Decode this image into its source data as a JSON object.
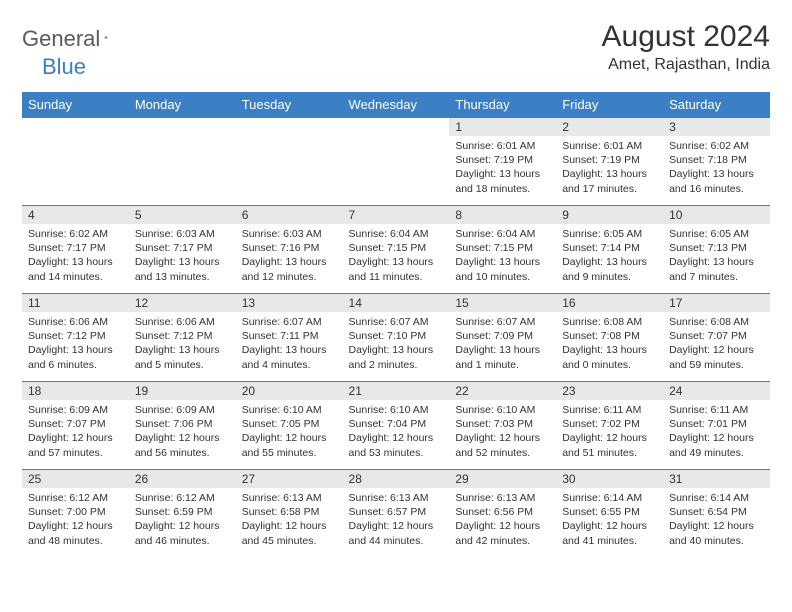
{
  "logo": {
    "text1": "General",
    "text2": "Blue"
  },
  "title": "August 2024",
  "location": "Amet, Rajasthan, India",
  "colors": {
    "header_bg": "#3b7fc4",
    "header_text": "#ffffff",
    "daynum_bg": "#e8e8e8",
    "row_border": "#3b7fc4",
    "body_text": "#333333",
    "logo_gray": "#5a5a5a"
  },
  "day_headers": [
    "Sunday",
    "Monday",
    "Tuesday",
    "Wednesday",
    "Thursday",
    "Friday",
    "Saturday"
  ],
  "weeks": [
    [
      {
        "num": "",
        "lines": []
      },
      {
        "num": "",
        "lines": []
      },
      {
        "num": "",
        "lines": []
      },
      {
        "num": "",
        "lines": []
      },
      {
        "num": "1",
        "lines": [
          "Sunrise: 6:01 AM",
          "Sunset: 7:19 PM",
          "Daylight: 13 hours",
          "and 18 minutes."
        ]
      },
      {
        "num": "2",
        "lines": [
          "Sunrise: 6:01 AM",
          "Sunset: 7:19 PM",
          "Daylight: 13 hours",
          "and 17 minutes."
        ]
      },
      {
        "num": "3",
        "lines": [
          "Sunrise: 6:02 AM",
          "Sunset: 7:18 PM",
          "Daylight: 13 hours",
          "and 16 minutes."
        ]
      }
    ],
    [
      {
        "num": "4",
        "lines": [
          "Sunrise: 6:02 AM",
          "Sunset: 7:17 PM",
          "Daylight: 13 hours",
          "and 14 minutes."
        ]
      },
      {
        "num": "5",
        "lines": [
          "Sunrise: 6:03 AM",
          "Sunset: 7:17 PM",
          "Daylight: 13 hours",
          "and 13 minutes."
        ]
      },
      {
        "num": "6",
        "lines": [
          "Sunrise: 6:03 AM",
          "Sunset: 7:16 PM",
          "Daylight: 13 hours",
          "and 12 minutes."
        ]
      },
      {
        "num": "7",
        "lines": [
          "Sunrise: 6:04 AM",
          "Sunset: 7:15 PM",
          "Daylight: 13 hours",
          "and 11 minutes."
        ]
      },
      {
        "num": "8",
        "lines": [
          "Sunrise: 6:04 AM",
          "Sunset: 7:15 PM",
          "Daylight: 13 hours",
          "and 10 minutes."
        ]
      },
      {
        "num": "9",
        "lines": [
          "Sunrise: 6:05 AM",
          "Sunset: 7:14 PM",
          "Daylight: 13 hours",
          "and 9 minutes."
        ]
      },
      {
        "num": "10",
        "lines": [
          "Sunrise: 6:05 AM",
          "Sunset: 7:13 PM",
          "Daylight: 13 hours",
          "and 7 minutes."
        ]
      }
    ],
    [
      {
        "num": "11",
        "lines": [
          "Sunrise: 6:06 AM",
          "Sunset: 7:12 PM",
          "Daylight: 13 hours",
          "and 6 minutes."
        ]
      },
      {
        "num": "12",
        "lines": [
          "Sunrise: 6:06 AM",
          "Sunset: 7:12 PM",
          "Daylight: 13 hours",
          "and 5 minutes."
        ]
      },
      {
        "num": "13",
        "lines": [
          "Sunrise: 6:07 AM",
          "Sunset: 7:11 PM",
          "Daylight: 13 hours",
          "and 4 minutes."
        ]
      },
      {
        "num": "14",
        "lines": [
          "Sunrise: 6:07 AM",
          "Sunset: 7:10 PM",
          "Daylight: 13 hours",
          "and 2 minutes."
        ]
      },
      {
        "num": "15",
        "lines": [
          "Sunrise: 6:07 AM",
          "Sunset: 7:09 PM",
          "Daylight: 13 hours",
          "and 1 minute."
        ]
      },
      {
        "num": "16",
        "lines": [
          "Sunrise: 6:08 AM",
          "Sunset: 7:08 PM",
          "Daylight: 13 hours",
          "and 0 minutes."
        ]
      },
      {
        "num": "17",
        "lines": [
          "Sunrise: 6:08 AM",
          "Sunset: 7:07 PM",
          "Daylight: 12 hours",
          "and 59 minutes."
        ]
      }
    ],
    [
      {
        "num": "18",
        "lines": [
          "Sunrise: 6:09 AM",
          "Sunset: 7:07 PM",
          "Daylight: 12 hours",
          "and 57 minutes."
        ]
      },
      {
        "num": "19",
        "lines": [
          "Sunrise: 6:09 AM",
          "Sunset: 7:06 PM",
          "Daylight: 12 hours",
          "and 56 minutes."
        ]
      },
      {
        "num": "20",
        "lines": [
          "Sunrise: 6:10 AM",
          "Sunset: 7:05 PM",
          "Daylight: 12 hours",
          "and 55 minutes."
        ]
      },
      {
        "num": "21",
        "lines": [
          "Sunrise: 6:10 AM",
          "Sunset: 7:04 PM",
          "Daylight: 12 hours",
          "and 53 minutes."
        ]
      },
      {
        "num": "22",
        "lines": [
          "Sunrise: 6:10 AM",
          "Sunset: 7:03 PM",
          "Daylight: 12 hours",
          "and 52 minutes."
        ]
      },
      {
        "num": "23",
        "lines": [
          "Sunrise: 6:11 AM",
          "Sunset: 7:02 PM",
          "Daylight: 12 hours",
          "and 51 minutes."
        ]
      },
      {
        "num": "24",
        "lines": [
          "Sunrise: 6:11 AM",
          "Sunset: 7:01 PM",
          "Daylight: 12 hours",
          "and 49 minutes."
        ]
      }
    ],
    [
      {
        "num": "25",
        "lines": [
          "Sunrise: 6:12 AM",
          "Sunset: 7:00 PM",
          "Daylight: 12 hours",
          "and 48 minutes."
        ]
      },
      {
        "num": "26",
        "lines": [
          "Sunrise: 6:12 AM",
          "Sunset: 6:59 PM",
          "Daylight: 12 hours",
          "and 46 minutes."
        ]
      },
      {
        "num": "27",
        "lines": [
          "Sunrise: 6:13 AM",
          "Sunset: 6:58 PM",
          "Daylight: 12 hours",
          "and 45 minutes."
        ]
      },
      {
        "num": "28",
        "lines": [
          "Sunrise: 6:13 AM",
          "Sunset: 6:57 PM",
          "Daylight: 12 hours",
          "and 44 minutes."
        ]
      },
      {
        "num": "29",
        "lines": [
          "Sunrise: 6:13 AM",
          "Sunset: 6:56 PM",
          "Daylight: 12 hours",
          "and 42 minutes."
        ]
      },
      {
        "num": "30",
        "lines": [
          "Sunrise: 6:14 AM",
          "Sunset: 6:55 PM",
          "Daylight: 12 hours",
          "and 41 minutes."
        ]
      },
      {
        "num": "31",
        "lines": [
          "Sunrise: 6:14 AM",
          "Sunset: 6:54 PM",
          "Daylight: 12 hours",
          "and 40 minutes."
        ]
      }
    ]
  ]
}
